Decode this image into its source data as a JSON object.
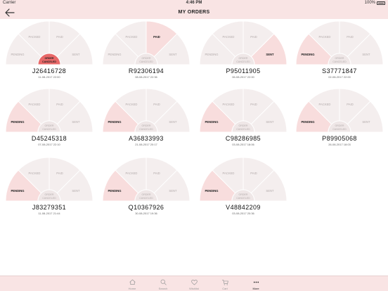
{
  "status_bar": {
    "carrier": "Carrier",
    "time": "4:46 PM",
    "battery": "100%"
  },
  "nav": {
    "title": "MY ORDERS"
  },
  "stage_labels": {
    "packed": "PACKED",
    "paid": "PAID",
    "pending": "PENDING",
    "sent": "SENT",
    "cancelled": "ORDER CANCELED"
  },
  "colors": {
    "background_sector": "#f4eeee",
    "highlight_sector": "#f8dddd",
    "cancelled_red": "#e86868",
    "center_fill": "#efe7e7",
    "chrome_pink": "#f9e4e4"
  },
  "orders": [
    {
      "number": "J26416728",
      "date": "11-08-2017 22:00",
      "status": "cancelled"
    },
    {
      "number": "R92306194",
      "date": "08-08-2017 22:36",
      "status": "paid"
    },
    {
      "number": "P95011905",
      "date": "06-08-2017 22:00",
      "status": "sent"
    },
    {
      "number": "S37771847",
      "date": "02-08-2017 22:00",
      "status": "pending"
    },
    {
      "number": "D45245318",
      "date": "07-08-2017 22:10",
      "status": "pending"
    },
    {
      "number": "A36833993",
      "date": "21-08-2017 20:17",
      "status": "pending"
    },
    {
      "number": "C98286985",
      "date": "03-08-2017 18:06",
      "status": "pending"
    },
    {
      "number": "P89905068",
      "date": "26-08-2017 18:03",
      "status": "pending"
    },
    {
      "number": "J83279351",
      "date": "11-08-2017 21:44",
      "status": "pending"
    },
    {
      "number": "Q10367926",
      "date": "30-08-2017 19:36",
      "status": "pending"
    },
    {
      "number": "V48842209",
      "date": "03-08-2017 20:36",
      "status": "pending"
    }
  ],
  "tabs": [
    {
      "label": "Home",
      "icon": "home-icon"
    },
    {
      "label": "Search",
      "icon": "search-icon"
    },
    {
      "label": "Wishlist",
      "icon": "heart-icon"
    },
    {
      "label": "Cart",
      "icon": "cart-icon"
    },
    {
      "label": "More",
      "icon": "more-icon",
      "active": true
    }
  ]
}
